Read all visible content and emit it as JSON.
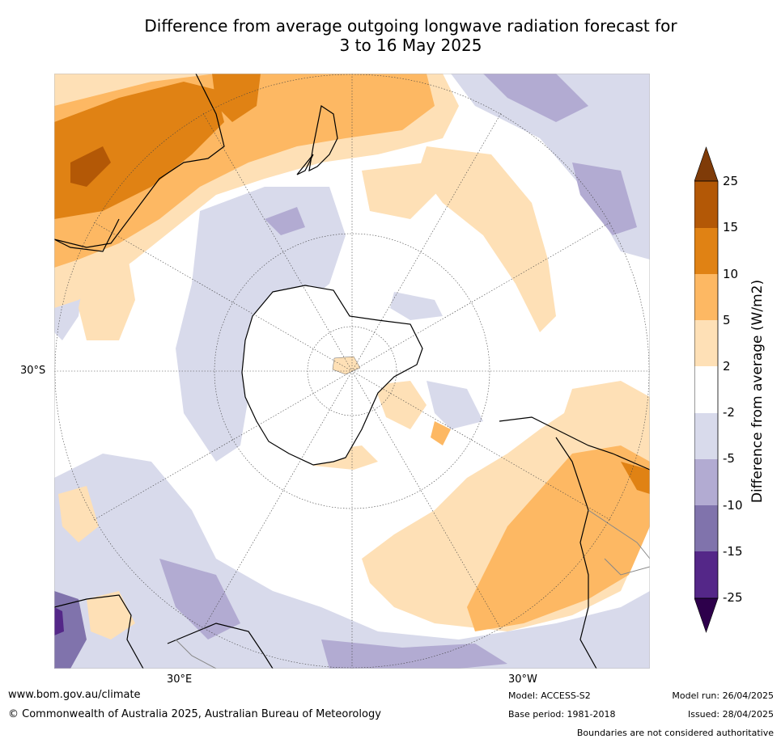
{
  "title": {
    "line1": "Difference from average outgoing longwave radiation forecast for",
    "line2": "3 to 16 May 2025"
  },
  "map": {
    "projection": "south polar stereographic",
    "lat_label": "30°S",
    "lon_labels": {
      "east": "30°E",
      "west": "30°W"
    }
  },
  "colorbar": {
    "label": "Difference from average (W/m2)",
    "ticks": [
      "25",
      "15",
      "10",
      "5",
      "2",
      "-2",
      "-5",
      "-10",
      "-15",
      "-25"
    ],
    "classes": [
      {
        "range": ">25",
        "color": "#7f3b08"
      },
      {
        "range": "15 to 25",
        "color": "#b35806"
      },
      {
        "range": "10 to 15",
        "color": "#e08214"
      },
      {
        "range": "5 to 10",
        "color": "#fdb863"
      },
      {
        "range": "2 to 5",
        "color": "#fee0b6"
      },
      {
        "range": "-2 to 2",
        "color": "#ffffff"
      },
      {
        "range": "-5 to -2",
        "color": "#d8daeb"
      },
      {
        "range": "-10 to -5",
        "color": "#b2abd2"
      },
      {
        "range": "-15 to -10",
        "color": "#8073ac"
      },
      {
        "range": "-25 to -15",
        "color": "#542788"
      },
      {
        "range": "<-25",
        "color": "#2d004b"
      }
    ]
  },
  "footer": {
    "website": "www.bom.gov.au/climate",
    "copyright": "© Commonwealth of Australia 2025, Australian Bureau of Meteorology",
    "model": "Model: ACCESS-S2",
    "base_period": "Base period: 1981-2018",
    "model_run": "Model run: 26/04/2025",
    "issued": "Issued: 28/04/2025",
    "disclaimer": "Boundaries are not considered authoritative"
  }
}
